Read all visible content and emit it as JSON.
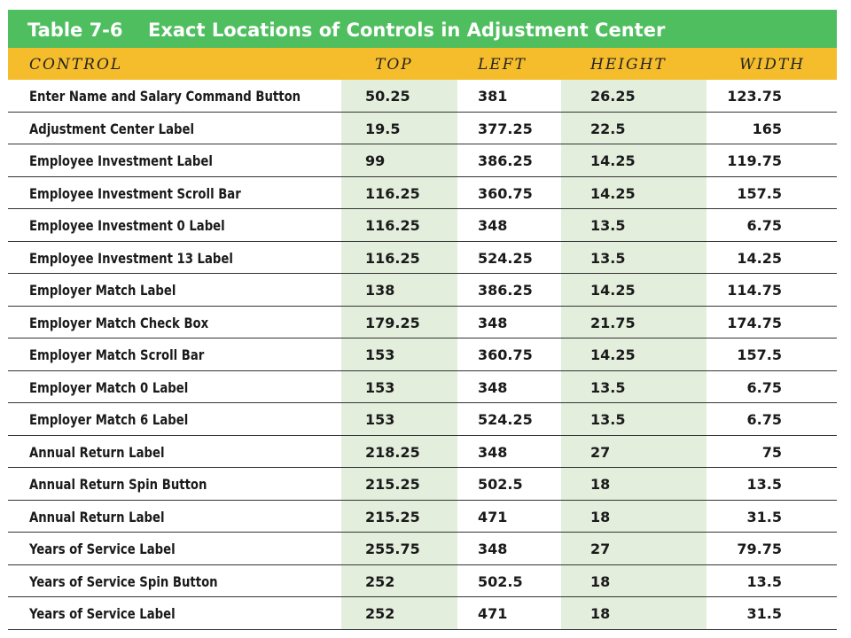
{
  "table": {
    "number": "Table 7-6",
    "title": "Exact Locations of Controls in Adjustment Center",
    "headers": [
      "CONTROL",
      "TOP",
      "LEFT",
      "HEIGHT",
      "WIDTH"
    ],
    "rows": [
      [
        "Enter Name and Salary Command Button",
        "50.25",
        "381",
        "26.25",
        "123.75"
      ],
      [
        "Adjustment Center Label",
        "19.5",
        "377.25",
        "22.5",
        "165"
      ],
      [
        "Employee Investment Label",
        "99",
        "386.25",
        "14.25",
        "119.75"
      ],
      [
        "Employee Investment Scroll Bar",
        "116.25",
        "360.75",
        "14.25",
        "157.5"
      ],
      [
        "Employee Investment 0 Label",
        "116.25",
        "348",
        "13.5",
        "6.75"
      ],
      [
        "Employee Investment 13 Label",
        "116.25",
        "524.25",
        "13.5",
        "14.25"
      ],
      [
        "Employer Match Label",
        "138",
        "386.25",
        "14.25",
        "114.75"
      ],
      [
        "Employer Match Check Box",
        "179.25",
        "348",
        "21.75",
        "174.75"
      ],
      [
        "Employer Match Scroll Bar",
        "153",
        "360.75",
        "14.25",
        "157.5"
      ],
      [
        "Employer Match 0 Label",
        "153",
        "348",
        "13.5",
        "6.75"
      ],
      [
        "Employer Match 6 Label",
        "153",
        "524.25",
        "13.5",
        "6.75"
      ],
      [
        "Annual Return Label",
        "218.25",
        "348",
        "27",
        "75"
      ],
      [
        "Annual Return Spin Button",
        "215.25",
        "502.5",
        "18",
        "13.5"
      ],
      [
        "Annual Return Label",
        "215.25",
        "471",
        "18",
        "31.5"
      ],
      [
        "Years of Service Label",
        "255.75",
        "348",
        "27",
        "79.75"
      ],
      [
        "Years of Service Spin Button",
        "252",
        "502.5",
        "18",
        "13.5"
      ],
      [
        "Years of Service Label",
        "252",
        "471",
        "18",
        "31.5"
      ]
    ]
  },
  "colors": {
    "title_bar": "#4fbe5f",
    "header_row": "#f5bd2b",
    "column_shade": "#e4eedd"
  }
}
